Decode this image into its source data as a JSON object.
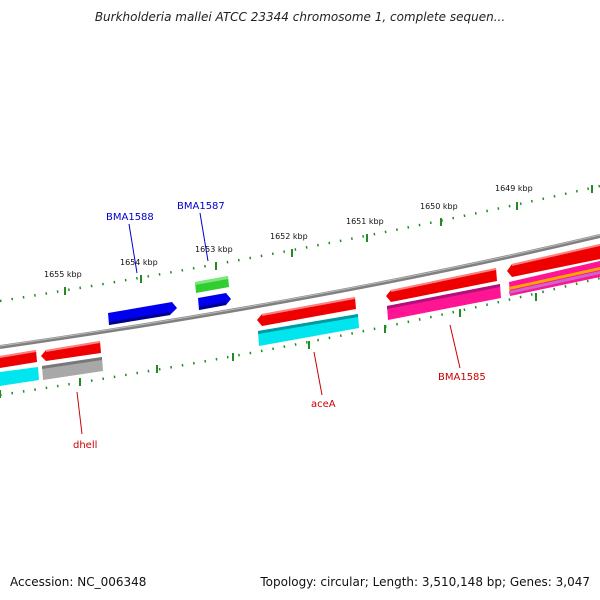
{
  "title": "Burkholderia mallei ATCC 23344 chromosome 1, complete sequen...",
  "footer": {
    "accession": "Accession: NC_006348",
    "stats": "Topology: circular; Length: 3,510,148 bp; Genes: 3,047"
  },
  "colors": {
    "backbone": "#808080",
    "ticks": "#228B22",
    "forward_gene": "#0000ee",
    "forward_label": "#0000cc",
    "reverse_gene": "#ee0000",
    "reverse_label": "#cc0000",
    "cyan_feature": "#00e5ee",
    "magenta_feature": "#ff1493",
    "gray_feature": "#a0a0a0",
    "green_feature": "#32cd32"
  },
  "scale_labels": [
    "1655 kbp",
    "1654 kbp",
    "1653 kbp",
    "1652 kbp",
    "1651 kbp",
    "1650 kbp",
    "1649 kbp"
  ],
  "gene_labels": {
    "bma1588": "BMA1588",
    "bma1587": "BMA1587",
    "dhell": "dhell",
    "acea": "aceA",
    "bma1585": "BMA1585"
  }
}
